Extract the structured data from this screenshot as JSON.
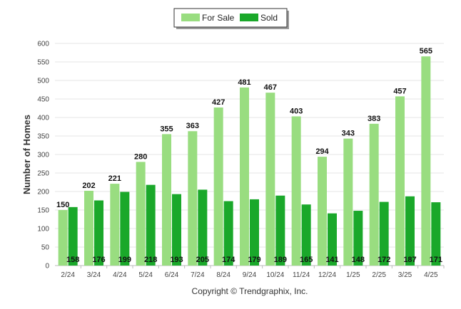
{
  "chart_data": {
    "type": "bar",
    "title": "",
    "ylabel": "Number of Homes",
    "xlabel": "",
    "ylim": [
      0,
      600
    ],
    "yticks": [
      0,
      50,
      100,
      150,
      200,
      250,
      300,
      350,
      400,
      450,
      500,
      550,
      600
    ],
    "categories": [
      "2/24",
      "3/24",
      "4/24",
      "5/24",
      "6/24",
      "7/24",
      "8/24",
      "9/24",
      "10/24",
      "11/24",
      "12/24",
      "1/25",
      "2/25",
      "3/25",
      "4/25"
    ],
    "series": [
      {
        "name": "For Sale",
        "color": "#99dd80",
        "values": [
          150,
          202,
          221,
          280,
          355,
          363,
          427,
          481,
          467,
          403,
          294,
          343,
          383,
          457,
          565
        ]
      },
      {
        "name": "Sold",
        "color": "#1aa82a",
        "values": [
          158,
          176,
          199,
          218,
          193,
          205,
          174,
          179,
          189,
          165,
          141,
          148,
          172,
          187,
          171
        ]
      }
    ],
    "legend_position": "top-center",
    "grid": true
  },
  "footer": {
    "copyright": "Copyright © Trendgraphix, Inc."
  }
}
